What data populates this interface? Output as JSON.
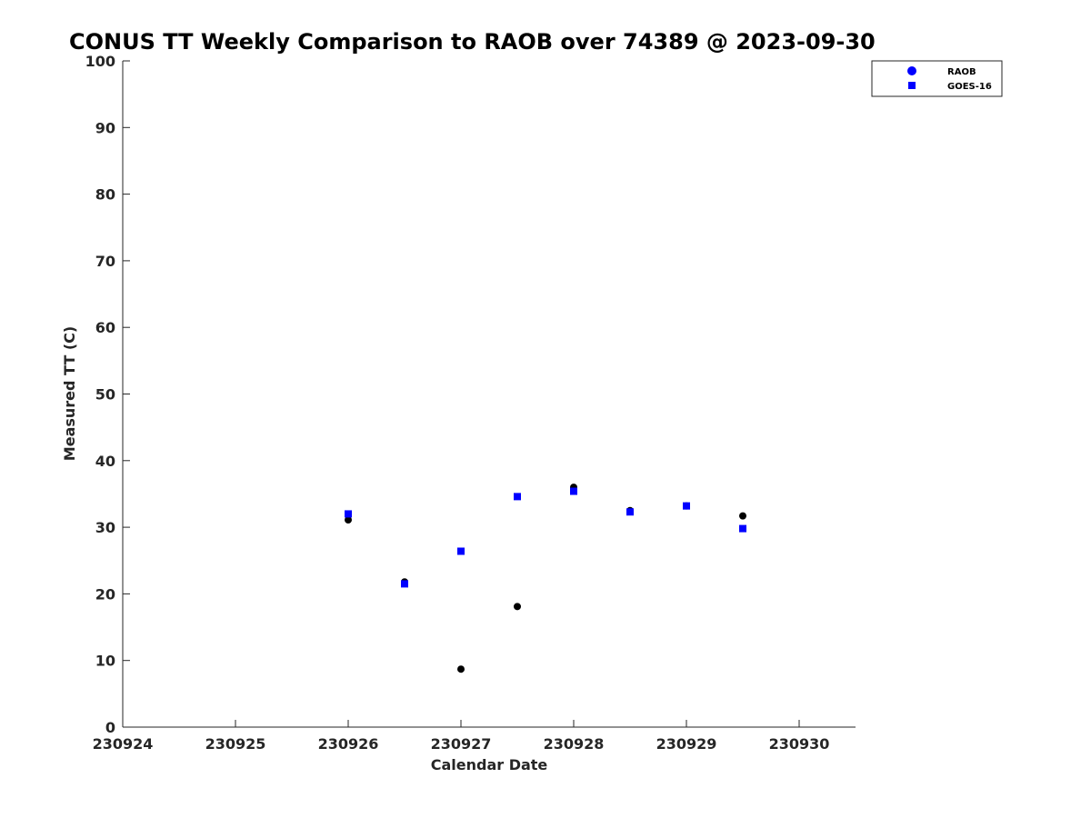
{
  "chart_data": {
    "type": "scatter",
    "title": "CONUS TT Weekly Comparison to RAOB over 74389 @ 2023-09-30",
    "xlabel": "Calendar Date",
    "ylabel": "Measured TT (C)",
    "xlim": [
      230924,
      230930.5
    ],
    "ylim": [
      0,
      100
    ],
    "xticks": [
      230924,
      230925,
      230926,
      230927,
      230928,
      230929,
      230930
    ],
    "xtick_labels": [
      "230924",
      "230925",
      "230926",
      "230927",
      "230928",
      "230929",
      "230930"
    ],
    "yticks": [
      0,
      10,
      20,
      30,
      40,
      50,
      60,
      70,
      80,
      90,
      100
    ],
    "ytick_labels": [
      "0",
      "10",
      "20",
      "30",
      "40",
      "50",
      "60",
      "70",
      "80",
      "90",
      "100"
    ],
    "grid": false,
    "legend": {
      "position": "top-right",
      "entries": [
        {
          "label": "RAOB",
          "marker": "circle",
          "color": "#0000ff"
        },
        {
          "label": "GOES-16",
          "marker": "square",
          "color": "#0000ff"
        }
      ]
    },
    "series": [
      {
        "name": "RAOB",
        "marker": "circle",
        "color": "#000000",
        "x": [
          230926,
          230926.5,
          230927,
          230927.5,
          230928,
          230928.5,
          230929,
          230929.5
        ],
        "y": [
          31.1,
          21.8,
          8.7,
          18.1,
          36.0,
          32.5,
          33.2,
          31.7
        ]
      },
      {
        "name": "GOES-16",
        "marker": "square",
        "color": "#0000ff",
        "x": [
          230926,
          230926.5,
          230927,
          230927.5,
          230928,
          230928.5,
          230929,
          230929.5
        ],
        "y": [
          32.0,
          21.5,
          26.4,
          34.6,
          35.4,
          32.3,
          33.2,
          29.8
        ]
      }
    ]
  }
}
